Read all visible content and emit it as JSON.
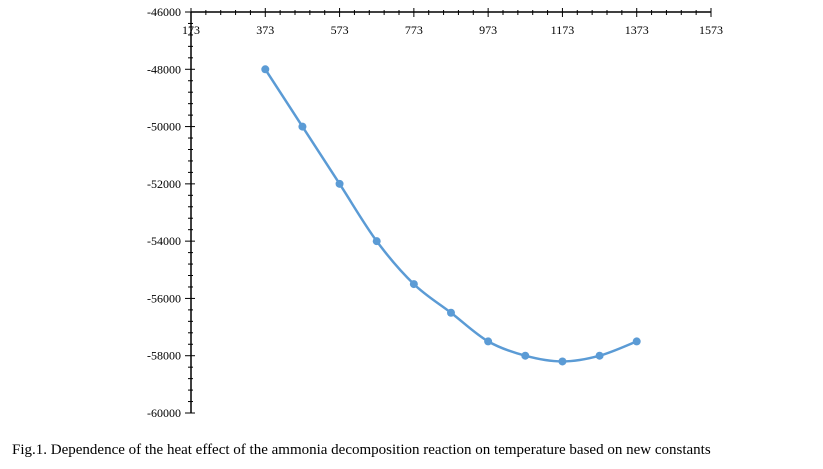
{
  "caption": "Fig.1. Dependence of the heat effect of the ammonia decomposition reaction on temperature based on new constants",
  "chart_data": {
    "type": "line",
    "title": "",
    "xlabel": "",
    "ylabel": "",
    "x_axis_position": "top",
    "xlim": [
      173,
      1573
    ],
    "ylim": [
      -60000,
      -46000
    ],
    "x_ticks": [
      173,
      373,
      573,
      773,
      973,
      1173,
      1373,
      1573
    ],
    "y_ticks": [
      -46000,
      -48000,
      -50000,
      -52000,
      -54000,
      -56000,
      -58000,
      -60000
    ],
    "grid": false,
    "series": [
      {
        "color": "#5b9bd5",
        "smooth": true,
        "markers": true,
        "x": [
          373,
          473,
          573,
          673,
          773,
          873,
          973,
          1073,
          1173,
          1273,
          1373
        ],
        "y": [
          -48000,
          -50000,
          -52000,
          -54000,
          -55500,
          -56500,
          -57500,
          -58000,
          -58200,
          -58000,
          -57500
        ]
      }
    ]
  }
}
